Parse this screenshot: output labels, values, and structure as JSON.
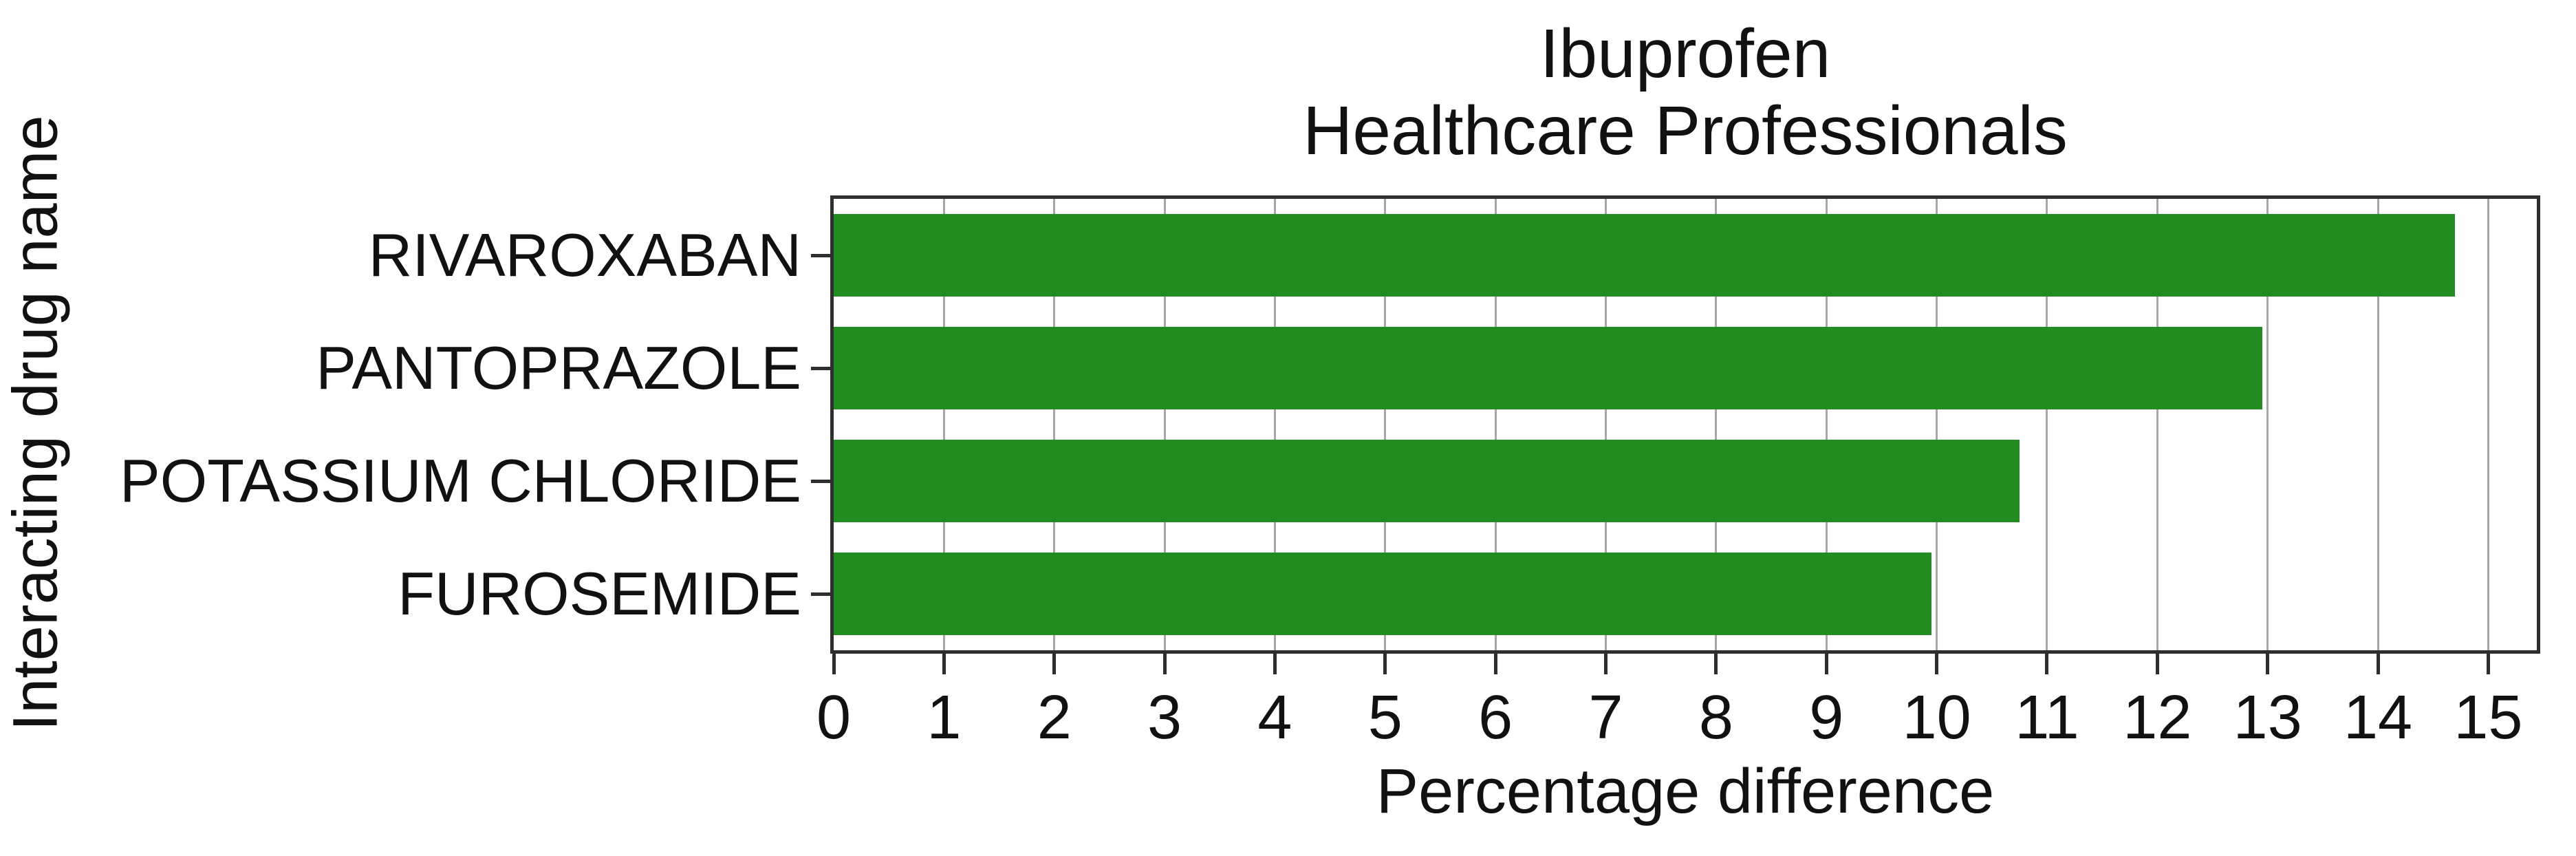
{
  "chart_data": {
    "type": "bar",
    "orientation": "horizontal",
    "title_line1": "Ibuprofen",
    "title_line2": "Healthcare Professionals",
    "categories": [
      "RIVAROXABAN",
      "PANTOPRAZOLE",
      "POTASSIUM CHLORIDE",
      "FUROSEMIDE"
    ],
    "values": [
      14.7,
      12.95,
      10.75,
      9.95
    ],
    "xlabel": "Percentage difference",
    "ylabel": "Interacting drug name",
    "xticks": [
      0,
      1,
      2,
      3,
      4,
      5,
      6,
      7,
      8,
      9,
      10,
      11,
      12,
      13,
      14,
      15
    ],
    "xlim": [
      0,
      15.44
    ],
    "grid": true,
    "legend": null,
    "colors": {
      "bar": "#228B22",
      "grid": "#a6a6a6",
      "axis": "#2e2e2e",
      "text": "#111111"
    }
  }
}
